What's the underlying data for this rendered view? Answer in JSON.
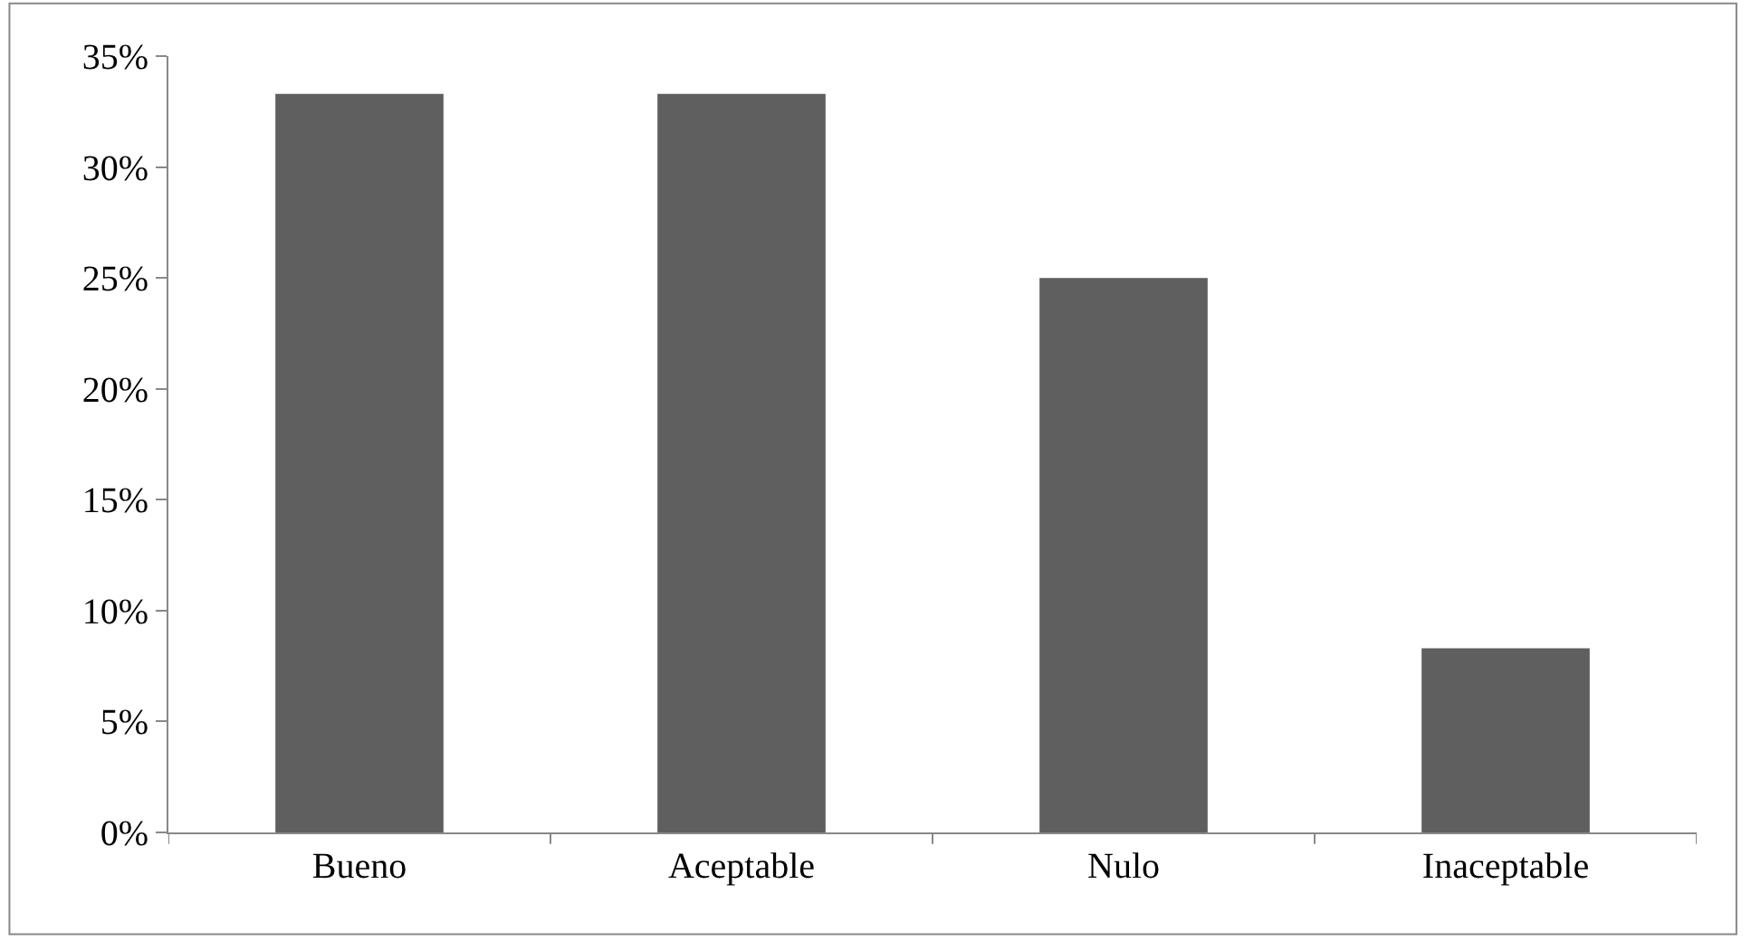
{
  "chart_data": {
    "type": "bar",
    "categories": [
      "Bueno",
      "Aceptable",
      "Nulo",
      "Inaceptable"
    ],
    "values": [
      33.3,
      33.3,
      25.0,
      8.3
    ],
    "color": "#5f5f5f",
    "ylim": [
      0,
      35
    ],
    "grid": false,
    "yticks": [
      {
        "value": 0,
        "label": "0%"
      },
      {
        "value": 5,
        "label": "5%"
      },
      {
        "value": 10,
        "label": "10%"
      },
      {
        "value": 15,
        "label": "15%"
      },
      {
        "value": 20,
        "label": "20%"
      },
      {
        "value": 25,
        "label": "25%"
      },
      {
        "value": 30,
        "label": "30%"
      },
      {
        "value": 35,
        "label": "35%"
      }
    ]
  }
}
